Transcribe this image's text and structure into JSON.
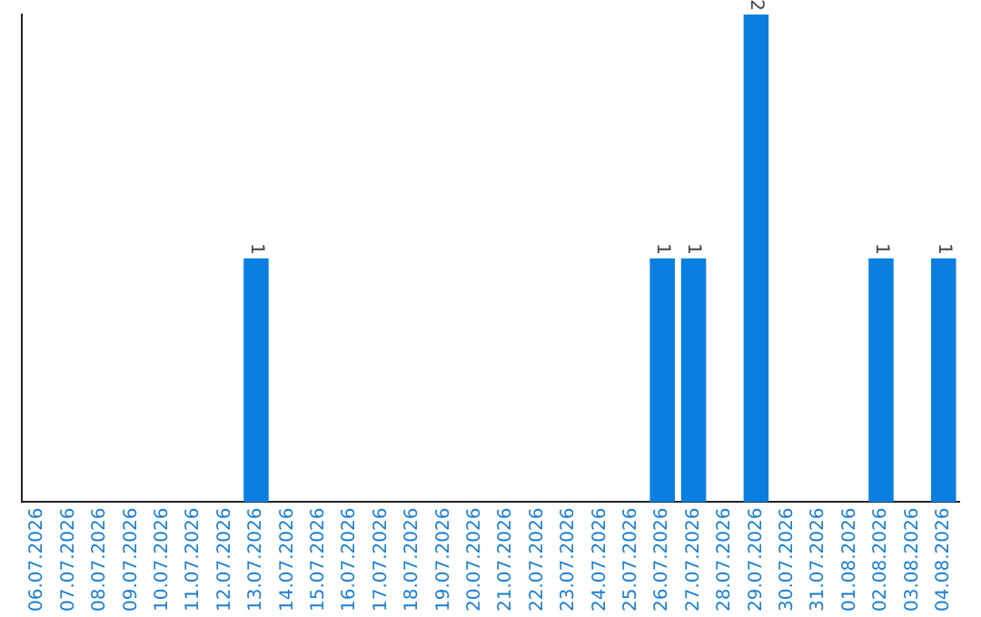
{
  "chart_data": {
    "type": "bar",
    "categories": [
      "06.07.2026",
      "07.07.2026",
      "08.07.2026",
      "09.07.2026",
      "10.07.2026",
      "11.07.2026",
      "12.07.2026",
      "13.07.2026",
      "14.07.2026",
      "15.07.2026",
      "16.07.2026",
      "17.07.2026",
      "18.07.2026",
      "19.07.2026",
      "20.07.2026",
      "21.07.2026",
      "22.07.2026",
      "23.07.2026",
      "24.07.2026",
      "25.07.2026",
      "26.07.2026",
      "27.07.2026",
      "28.07.2026",
      "29.07.2026",
      "30.07.2026",
      "31.07.2026",
      "01.08.2026",
      "02.08.2026",
      "03.08.2026",
      "04.08.2026"
    ],
    "values": [
      0,
      0,
      0,
      0,
      0,
      0,
      0,
      1,
      0,
      0,
      0,
      0,
      0,
      0,
      0,
      0,
      0,
      0,
      0,
      0,
      1,
      1,
      0,
      2,
      0,
      0,
      0,
      1,
      0,
      1
    ],
    "value_labels": [
      null,
      null,
      null,
      null,
      null,
      null,
      null,
      "1",
      null,
      null,
      null,
      null,
      null,
      null,
      null,
      null,
      null,
      null,
      null,
      null,
      "1",
      "1",
      null,
      "2",
      null,
      null,
      null,
      "1",
      null,
      "1"
    ],
    "color": "#0a7fe0",
    "grid": false,
    "legend": false,
    "tick_labels": "x"
  }
}
